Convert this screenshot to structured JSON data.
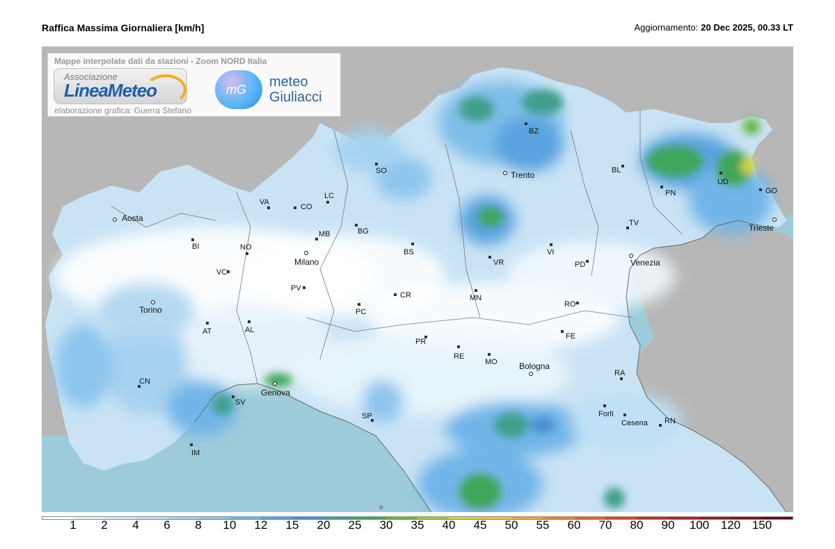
{
  "header": {
    "title": "Raffica Massima Giornaliera [km/h]",
    "updated_label": "Aggiornamento:",
    "updated_value": "20 Dec 2025, 00.33 LT"
  },
  "credit": {
    "subtitle": "Mappe interpolate dati da stazioni - Zoom NORD Italia",
    "author": "elaborazione grafica: Guerra Stefano",
    "logo1_small": "Associazione",
    "logo1_big": "LineaMeteo",
    "logo2_icon": "mG",
    "logo2_line1": "meteo",
    "logo2_line2": "Giuliacci"
  },
  "cities": {
    "aosta": "Aosta",
    "bi": "BI",
    "no": "NO",
    "va": "VA",
    "co": "CO",
    "lc": "LC",
    "so": "SO",
    "mb": "MB",
    "milano": "Milano",
    "bg": "BG",
    "bs": "BS",
    "vc": "VC",
    "pv": "PV",
    "torino": "Torino",
    "at": "AT",
    "al": "AL",
    "pc": "PC",
    "cr": "CR",
    "pr": "PR",
    "re": "RE",
    "mo": "MO",
    "bologna": "Bologna",
    "cn": "CN",
    "genova": "Genova",
    "sv": "SV",
    "im": "IM",
    "sp": "SP",
    "bz": "BZ",
    "trento": "Trento",
    "vr": "VR",
    "vi": "VI",
    "mn": "MN",
    "bl": "BL",
    "tv": "TV",
    "pd": "PD",
    "venezia": "Venezia",
    "ro": "RO",
    "fe": "FE",
    "ra": "RA",
    "forli": "Forlì",
    "cesena": "Cesena",
    "rn": "RN",
    "pn": "PN",
    "ud": "UD",
    "go": "GO",
    "trieste": "Trieste"
  },
  "scale": {
    "ticks": [
      "1",
      "2",
      "4",
      "6",
      "8",
      "10",
      "12",
      "15",
      "20",
      "25",
      "30",
      "35",
      "40",
      "45",
      "50",
      "55",
      "60",
      "70",
      "80",
      "90",
      "100",
      "120",
      "150"
    ],
    "colors": [
      "#ffffff",
      "#eaf4fb",
      "#d6eaf8",
      "#bfe0f6",
      "#a5d3f2",
      "#8cc5ee",
      "#72b5e8",
      "#5aa3df",
      "#4a90d0",
      "#3f9f8c",
      "#3fa65a",
      "#66b83c",
      "#a3c93a",
      "#d8d531",
      "#f2c52c",
      "#f0a52a",
      "#ec8528",
      "#e36327",
      "#d84526",
      "#c82a25",
      "#b21f24",
      "#9a1a22",
      "#7d1320",
      "#5c0d1a"
    ]
  },
  "icons": {
    "location": "city-marker-icon"
  }
}
